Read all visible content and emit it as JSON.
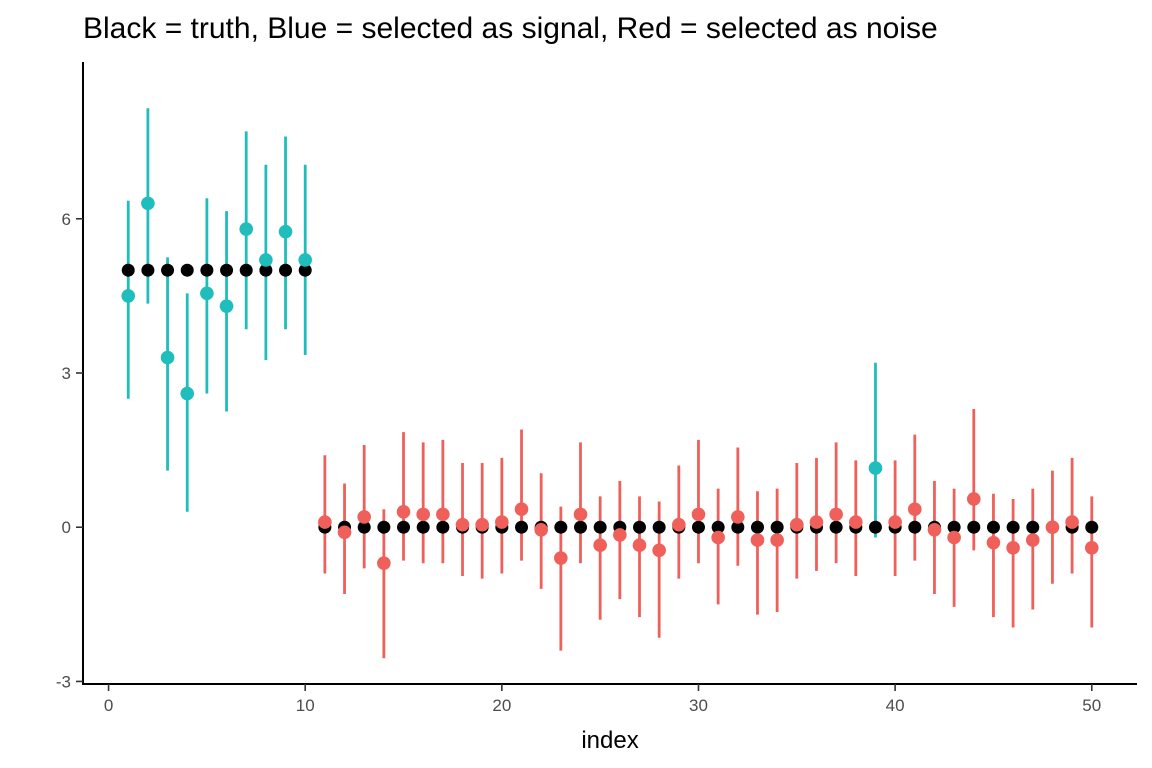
{
  "chart_data": {
    "type": "scatter",
    "title": "Black = truth, Blue = selected as signal, Red = selected as noise",
    "xlabel": "index",
    "ylabel": "",
    "xlim": [
      -1.3,
      52.3
    ],
    "ylim": [
      -3.05,
      9.05
    ],
    "x_ticks": [
      0,
      10,
      20,
      30,
      40,
      50
    ],
    "y_ticks": [
      -3,
      0,
      3,
      6
    ],
    "grid": false,
    "legend": "none",
    "colors": {
      "truth": "#000000",
      "signal": "#1fbdbb",
      "noise": "#f0605a"
    },
    "truth": [
      {
        "x": 1,
        "y": 5
      },
      {
        "x": 2,
        "y": 5
      },
      {
        "x": 3,
        "y": 5
      },
      {
        "x": 4,
        "y": 5
      },
      {
        "x": 5,
        "y": 5
      },
      {
        "x": 6,
        "y": 5
      },
      {
        "x": 7,
        "y": 5
      },
      {
        "x": 8,
        "y": 5
      },
      {
        "x": 9,
        "y": 5
      },
      {
        "x": 10,
        "y": 5
      },
      {
        "x": 11,
        "y": 0
      },
      {
        "x": 12,
        "y": 0
      },
      {
        "x": 13,
        "y": 0
      },
      {
        "x": 14,
        "y": 0
      },
      {
        "x": 15,
        "y": 0
      },
      {
        "x": 16,
        "y": 0
      },
      {
        "x": 17,
        "y": 0
      },
      {
        "x": 18,
        "y": 0
      },
      {
        "x": 19,
        "y": 0
      },
      {
        "x": 20,
        "y": 0
      },
      {
        "x": 21,
        "y": 0
      },
      {
        "x": 22,
        "y": 0
      },
      {
        "x": 23,
        "y": 0
      },
      {
        "x": 24,
        "y": 0
      },
      {
        "x": 25,
        "y": 0
      },
      {
        "x": 26,
        "y": 0
      },
      {
        "x": 27,
        "y": 0
      },
      {
        "x": 28,
        "y": 0
      },
      {
        "x": 29,
        "y": 0
      },
      {
        "x": 30,
        "y": 0
      },
      {
        "x": 31,
        "y": 0
      },
      {
        "x": 32,
        "y": 0
      },
      {
        "x": 33,
        "y": 0
      },
      {
        "x": 34,
        "y": 0
      },
      {
        "x": 35,
        "y": 0
      },
      {
        "x": 36,
        "y": 0
      },
      {
        "x": 37,
        "y": 0
      },
      {
        "x": 38,
        "y": 0
      },
      {
        "x": 39,
        "y": 0
      },
      {
        "x": 40,
        "y": 0
      },
      {
        "x": 41,
        "y": 0
      },
      {
        "x": 42,
        "y": 0
      },
      {
        "x": 43,
        "y": 0
      },
      {
        "x": 44,
        "y": 0
      },
      {
        "x": 45,
        "y": 0
      },
      {
        "x": 46,
        "y": 0
      },
      {
        "x": 47,
        "y": 0
      },
      {
        "x": 48,
        "y": 0
      },
      {
        "x": 49,
        "y": 0
      },
      {
        "x": 50,
        "y": 0
      }
    ],
    "estimates": [
      {
        "x": 1,
        "y": 4.5,
        "lo": 2.5,
        "hi": 6.35,
        "group": "signal"
      },
      {
        "x": 2,
        "y": 6.3,
        "lo": 4.35,
        "hi": 8.15,
        "group": "signal"
      },
      {
        "x": 3,
        "y": 3.3,
        "lo": 1.1,
        "hi": 5.25,
        "group": "signal"
      },
      {
        "x": 4,
        "y": 2.6,
        "lo": 0.3,
        "hi": 4.55,
        "group": "signal"
      },
      {
        "x": 5,
        "y": 4.55,
        "lo": 2.6,
        "hi": 6.4,
        "group": "signal"
      },
      {
        "x": 6,
        "y": 4.3,
        "lo": 2.25,
        "hi": 6.15,
        "group": "signal"
      },
      {
        "x": 7,
        "y": 5.8,
        "lo": 3.85,
        "hi": 7.7,
        "group": "signal"
      },
      {
        "x": 8,
        "y": 5.2,
        "lo": 3.25,
        "hi": 7.05,
        "group": "signal"
      },
      {
        "x": 9,
        "y": 5.75,
        "lo": 3.85,
        "hi": 7.6,
        "group": "signal"
      },
      {
        "x": 10,
        "y": 5.2,
        "lo": 3.35,
        "hi": 7.05,
        "group": "signal"
      },
      {
        "x": 11,
        "y": 0.1,
        "lo": -0.9,
        "hi": 1.4,
        "group": "noise"
      },
      {
        "x": 12,
        "y": -0.1,
        "lo": -1.3,
        "hi": 0.85,
        "group": "noise"
      },
      {
        "x": 13,
        "y": 0.2,
        "lo": -0.8,
        "hi": 1.6,
        "group": "noise"
      },
      {
        "x": 14,
        "y": -0.7,
        "lo": -2.55,
        "hi": 0.35,
        "group": "noise"
      },
      {
        "x": 15,
        "y": 0.3,
        "lo": -0.65,
        "hi": 1.85,
        "group": "noise"
      },
      {
        "x": 16,
        "y": 0.25,
        "lo": -0.7,
        "hi": 1.65,
        "group": "noise"
      },
      {
        "x": 17,
        "y": 0.25,
        "lo": -0.7,
        "hi": 1.7,
        "group": "noise"
      },
      {
        "x": 18,
        "y": 0.05,
        "lo": -0.95,
        "hi": 1.25,
        "group": "noise"
      },
      {
        "x": 19,
        "y": 0.05,
        "lo": -1.0,
        "hi": 1.25,
        "group": "noise"
      },
      {
        "x": 20,
        "y": 0.1,
        "lo": -0.9,
        "hi": 1.35,
        "group": "noise"
      },
      {
        "x": 21,
        "y": 0.35,
        "lo": -0.65,
        "hi": 1.9,
        "group": "noise"
      },
      {
        "x": 22,
        "y": -0.05,
        "lo": -1.2,
        "hi": 1.05,
        "group": "noise"
      },
      {
        "x": 23,
        "y": -0.6,
        "lo": -2.4,
        "hi": 0.4,
        "group": "noise"
      },
      {
        "x": 24,
        "y": 0.25,
        "lo": -0.7,
        "hi": 1.65,
        "group": "noise"
      },
      {
        "x": 25,
        "y": -0.35,
        "lo": -1.8,
        "hi": 0.6,
        "group": "noise"
      },
      {
        "x": 26,
        "y": -0.15,
        "lo": -1.4,
        "hi": 0.9,
        "group": "noise"
      },
      {
        "x": 27,
        "y": -0.35,
        "lo": -1.75,
        "hi": 0.6,
        "group": "noise"
      },
      {
        "x": 28,
        "y": -0.45,
        "lo": -2.15,
        "hi": 0.5,
        "group": "noise"
      },
      {
        "x": 29,
        "y": 0.05,
        "lo": -1.0,
        "hi": 1.2,
        "group": "noise"
      },
      {
        "x": 30,
        "y": 0.25,
        "lo": -0.7,
        "hi": 1.7,
        "group": "noise"
      },
      {
        "x": 31,
        "y": -0.2,
        "lo": -1.5,
        "hi": 0.75,
        "group": "noise"
      },
      {
        "x": 32,
        "y": 0.2,
        "lo": -0.75,
        "hi": 1.55,
        "group": "noise"
      },
      {
        "x": 33,
        "y": -0.25,
        "lo": -1.7,
        "hi": 0.7,
        "group": "noise"
      },
      {
        "x": 34,
        "y": -0.25,
        "lo": -1.65,
        "hi": 0.75,
        "group": "noise"
      },
      {
        "x": 35,
        "y": 0.05,
        "lo": -1.0,
        "hi": 1.25,
        "group": "noise"
      },
      {
        "x": 36,
        "y": 0.1,
        "lo": -0.85,
        "hi": 1.35,
        "group": "noise"
      },
      {
        "x": 37,
        "y": 0.25,
        "lo": -0.7,
        "hi": 1.65,
        "group": "noise"
      },
      {
        "x": 38,
        "y": 0.1,
        "lo": -0.95,
        "hi": 1.3,
        "group": "noise"
      },
      {
        "x": 39,
        "y": 1.15,
        "lo": -0.2,
        "hi": 3.2,
        "group": "signal"
      },
      {
        "x": 40,
        "y": 0.1,
        "lo": -0.95,
        "hi": 1.3,
        "group": "noise"
      },
      {
        "x": 41,
        "y": 0.35,
        "lo": -0.65,
        "hi": 1.8,
        "group": "noise"
      },
      {
        "x": 42,
        "y": -0.05,
        "lo": -1.3,
        "hi": 0.9,
        "group": "noise"
      },
      {
        "x": 43,
        "y": -0.2,
        "lo": -1.55,
        "hi": 0.75,
        "group": "noise"
      },
      {
        "x": 44,
        "y": 0.55,
        "lo": -0.45,
        "hi": 2.3,
        "group": "noise"
      },
      {
        "x": 45,
        "y": -0.3,
        "lo": -1.75,
        "hi": 0.65,
        "group": "noise"
      },
      {
        "x": 46,
        "y": -0.4,
        "lo": -1.95,
        "hi": 0.55,
        "group": "noise"
      },
      {
        "x": 47,
        "y": -0.25,
        "lo": -1.6,
        "hi": 0.75,
        "group": "noise"
      },
      {
        "x": 48,
        "y": 0.0,
        "lo": -1.1,
        "hi": 1.1,
        "group": "noise"
      },
      {
        "x": 49,
        "y": 0.1,
        "lo": -0.9,
        "hi": 1.35,
        "group": "noise"
      },
      {
        "x": 50,
        "y": -0.4,
        "lo": -1.95,
        "hi": 0.6,
        "group": "noise"
      }
    ]
  }
}
